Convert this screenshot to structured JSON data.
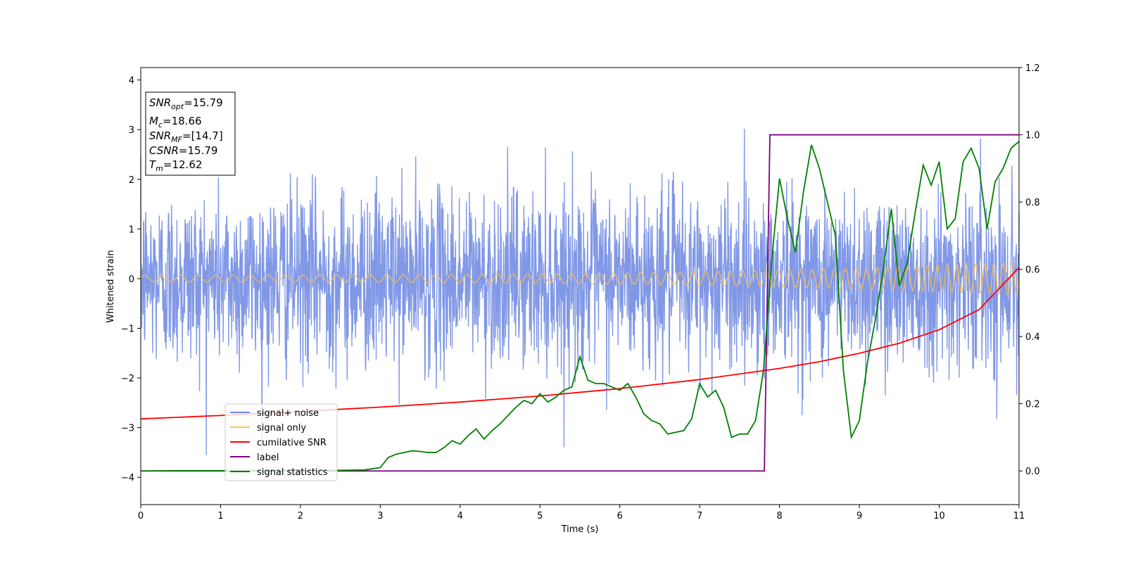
{
  "chart_data": {
    "type": "line",
    "xlabel": "Time (s)",
    "ylabel": "Whitened strain",
    "xlim": [
      0,
      11
    ],
    "ylim_left": [
      -4.55,
      4.25
    ],
    "ylim_right": [
      -0.1,
      1.2
    ],
    "grid": false,
    "legend_placement": "lower-left",
    "x_ticks": [
      "0",
      "1",
      "2",
      "3",
      "4",
      "5",
      "6",
      "7",
      "8",
      "9",
      "10",
      "11"
    ],
    "y_ticks_left": [
      "4",
      "3",
      "2",
      "1",
      "0",
      "−1",
      "−2",
      "−3",
      "−4"
    ],
    "y_ticks_right": [
      "1.2",
      "1.0",
      "0.8",
      "0.6",
      "0.4",
      "0.2",
      "0.0"
    ],
    "info_box": {
      "snr_opt": {
        "main": "SNR",
        "sub": "opt",
        "value": "=15.79"
      },
      "mc": {
        "main": "M",
        "sub": "c",
        "value": "=18.66"
      },
      "snr_mf": {
        "main": "SNR",
        "sub": "MF",
        "value": "=[14.7]"
      },
      "csnr": {
        "main": "CSNR",
        "value": "=15.79"
      },
      "tm": {
        "main": "T",
        "sub": "m",
        "value": "=12.62"
      }
    },
    "series": [
      {
        "name": "signal+ noise",
        "axis": "left",
        "color": "#6b86e3",
        "description_values": "dense noise, approx. std 0.9, envelope roughly -3.5 to 3.9"
      },
      {
        "name": "signal only",
        "axis": "left",
        "color": "#ffc04d",
        "chirp": {
          "amp_start": 0.07,
          "amp_end": 0.33,
          "freq_start_hz": 4.5,
          "freq_end_hz": 9
        }
      },
      {
        "name": "cumilative SNR",
        "axis": "right",
        "color": "#ff0000",
        "x": [
          0,
          1,
          2,
          3,
          4,
          5,
          6,
          7,
          8,
          8.5,
          9,
          9.5,
          10,
          10.5,
          11
        ],
        "y": [
          0.155,
          0.165,
          0.177,
          0.19,
          0.205,
          0.223,
          0.245,
          0.272,
          0.305,
          0.325,
          0.35,
          0.38,
          0.42,
          0.48,
          0.605
        ]
      },
      {
        "name": "label",
        "axis": "right",
        "color": "#800080",
        "x": [
          0,
          7.81,
          7.88,
          11
        ],
        "y": [
          0.0,
          0.0,
          1.0,
          1.0
        ]
      },
      {
        "name": "signal statistics",
        "axis": "right",
        "color": "#008000",
        "x": [
          0,
          0.5,
          1,
          1.5,
          2,
          2.5,
          2.8,
          3.0,
          3.1,
          3.2,
          3.3,
          3.4,
          3.5,
          3.6,
          3.7,
          3.8,
          3.9,
          4.0,
          4.1,
          4.2,
          4.3,
          4.4,
          4.5,
          4.6,
          4.7,
          4.8,
          4.9,
          5.0,
          5.1,
          5.2,
          5.3,
          5.4,
          5.5,
          5.6,
          5.7,
          5.8,
          5.9,
          6.0,
          6.1,
          6.2,
          6.3,
          6.4,
          6.5,
          6.6,
          6.7,
          6.8,
          6.9,
          7.0,
          7.1,
          7.2,
          7.3,
          7.4,
          7.5,
          7.6,
          7.7,
          7.8,
          7.9,
          8.0,
          8.1,
          8.2,
          8.3,
          8.4,
          8.5,
          8.6,
          8.7,
          8.8,
          8.9,
          9.0,
          9.1,
          9.2,
          9.3,
          9.4,
          9.5,
          9.6,
          9.7,
          9.8,
          9.9,
          10.0,
          10.1,
          10.2,
          10.3,
          10.4,
          10.5,
          10.6,
          10.7,
          10.8,
          10.9,
          11.0
        ],
        "y": [
          0.0,
          0.001,
          0.001,
          0.001,
          0.002,
          0.002,
          0.003,
          0.01,
          0.04,
          0.05,
          0.055,
          0.06,
          0.058,
          0.055,
          0.055,
          0.07,
          0.09,
          0.08,
          0.105,
          0.125,
          0.095,
          0.12,
          0.14,
          0.165,
          0.19,
          0.21,
          0.2,
          0.23,
          0.205,
          0.22,
          0.24,
          0.25,
          0.34,
          0.27,
          0.26,
          0.26,
          0.25,
          0.24,
          0.26,
          0.22,
          0.17,
          0.15,
          0.14,
          0.11,
          0.115,
          0.12,
          0.155,
          0.26,
          0.22,
          0.24,
          0.19,
          0.1,
          0.11,
          0.11,
          0.15,
          0.3,
          0.62,
          0.87,
          0.75,
          0.65,
          0.83,
          0.97,
          0.9,
          0.8,
          0.7,
          0.3,
          0.1,
          0.15,
          0.32,
          0.45,
          0.6,
          0.78,
          0.55,
          0.62,
          0.77,
          0.91,
          0.85,
          0.92,
          0.72,
          0.75,
          0.92,
          0.96,
          0.9,
          0.72,
          0.86,
          0.9,
          0.96,
          0.98
        ]
      }
    ]
  }
}
